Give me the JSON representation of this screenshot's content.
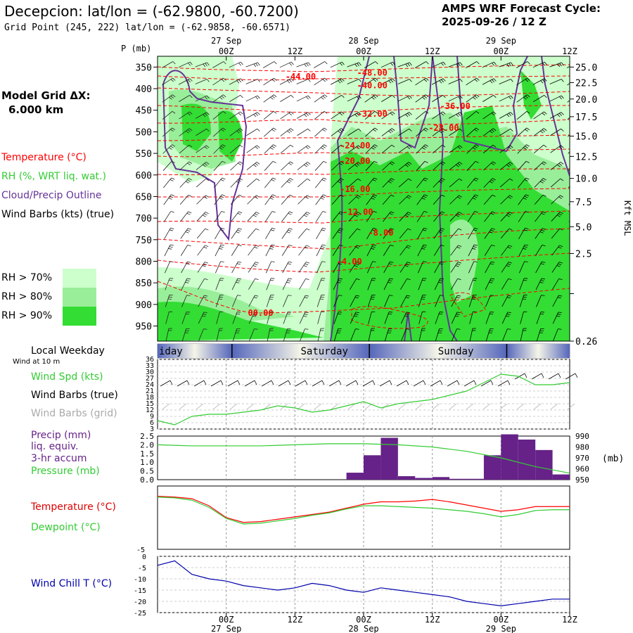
{
  "header": {
    "title": "Decepcion:  lat/lon = (-62.9800, -60.7200)",
    "grid_point": "Grid Point (245, 222) lat/lon = (-62.9858, -60.6571)",
    "cycle_title": "AMPS WRF Forecast Cycle:",
    "cycle_value": "2025-09-26 / 12  Z"
  },
  "legend": {
    "model_grid": "Model Grid ΔX:",
    "model_grid_value": "6.000 km",
    "temperature": "Temperature (°C)",
    "rh": "RH (%, WRT liq. wat.)",
    "cloud": "Cloud/Precip Outline",
    "wind": "Wind Barbs (kts) (true)",
    "rh70": "RH > 70%",
    "rh80": "RH > 80%",
    "rh90": "RH > 90%",
    "weekday_title": "Local Weekday",
    "wind_at": "Wind at 10 m",
    "wspd": "Wind Spd (kts)",
    "wbarbs_true": "Wind Barbs (true)",
    "wbarbs_grid": "Wind Barbs (grid)",
    "precip1": "Precip (mm)",
    "precip2": "liq. equiv.",
    "precip3": "3-hr accum",
    "pressure": "Pressure (mb)",
    "temp2": "Temperature (°C)",
    "dewpoint": "Dewpoint (°C)",
    "windchill": "Wind Chill T (°C)"
  },
  "colors": {
    "temp": "#ff0000",
    "rh": "#33dd33",
    "rh70": "#ccffcc",
    "rh80": "#99ee99",
    "rh90": "#33dd33",
    "cloud": "#663399",
    "precip": "#662288",
    "windchill": "#0000aa",
    "grid_wind": "#aaaaaa"
  },
  "chart_data": [
    {
      "type": "heatmap",
      "name": "time-height cross section",
      "p_label": "P (mb)",
      "p_ticks": [
        "350",
        "400",
        "450",
        "500",
        "550",
        "600",
        "650",
        "700",
        "750",
        "800",
        "850",
        "900",
        "950"
      ],
      "p_range": [
        325,
        985
      ],
      "height_ticks": [
        {
          "p": 350,
          "label": "25.0"
        },
        {
          "p": 386,
          "label": "22.5"
        },
        {
          "p": 424,
          "label": "20.0"
        },
        {
          "p": 465,
          "label": "17.5"
        },
        {
          "p": 510,
          "label": "15.0"
        },
        {
          "p": 557,
          "label": "12.5"
        },
        {
          "p": 608,
          "label": "10.0"
        },
        {
          "p": 662,
          "label": "7.5"
        },
        {
          "p": 720,
          "label": "5.0"
        },
        {
          "p": 782,
          "label": "2.5"
        },
        {
          "p": 875,
          "label": "0.26"
        }
      ],
      "height_axis_label": "Kft MSL",
      "time_ticks": [
        {
          "h": 12,
          "label": "00Z",
          "date": "27 Sep"
        },
        {
          "h": 24,
          "label": "12Z",
          "date": ""
        },
        {
          "h": 36,
          "label": "00Z",
          "date": "28 Sep"
        },
        {
          "h": 48,
          "label": "12Z",
          "date": ""
        },
        {
          "h": 60,
          "label": "00Z",
          "date": "29 Sep"
        },
        {
          "h": 72,
          "label": "12Z",
          "date": ""
        }
      ],
      "time_range": [
        0,
        72
      ],
      "temp_contours": [
        {
          "label": "-48.00",
          "h": 37.5,
          "p": 363
        },
        {
          "label": "-44.00",
          "h": 25,
          "p": 372
        },
        {
          "label": "-40.00",
          "h": 37.5,
          "p": 393
        },
        {
          "label": "-36.00",
          "h": 52,
          "p": 441
        },
        {
          "label": "-32.00",
          "h": 37.5,
          "p": 459
        },
        {
          "label": "-28.00",
          "h": 50,
          "p": 491
        },
        {
          "label": "-24.00",
          "h": 34.5,
          "p": 532
        },
        {
          "label": "-20.00",
          "h": 34.5,
          "p": 568
        },
        {
          "label": "-16.00",
          "h": 34.5,
          "p": 633
        },
        {
          "label": "-12.00",
          "h": 35,
          "p": 686
        },
        {
          "label": "-8.00",
          "h": 39,
          "p": 734
        },
        {
          "label": "-4.00",
          "h": 33.5,
          "p": 801
        },
        {
          "label": "00.00",
          "h": 18,
          "p": 920
        }
      ]
    },
    {
      "type": "line",
      "name": "surface wind",
      "weekdays": [
        {
          "label": "Friday",
          "shown": "iday"
        },
        {
          "label": "Saturday",
          "shown": "Saturday"
        },
        {
          "label": "Sunday",
          "shown": "Sunday"
        }
      ],
      "y_ticks": [
        "36",
        "33",
        "30",
        "27",
        "24",
        "21",
        "18",
        "15",
        "12",
        "9",
        "6",
        "3"
      ],
      "ylim": [
        3,
        36
      ],
      "wind_speed_x": [
        0,
        3,
        6,
        9,
        12,
        15,
        18,
        21,
        24,
        27,
        30,
        33,
        36,
        39,
        42,
        45,
        48,
        51,
        54,
        57,
        60,
        63,
        66,
        69,
        72
      ],
      "wind_speed": [
        7,
        5,
        9,
        10,
        10,
        11,
        12,
        14,
        13,
        11,
        12,
        14,
        16,
        13,
        15,
        16,
        17,
        19,
        21,
        25,
        29,
        28,
        24,
        24,
        25
      ]
    },
    {
      "type": "bar",
      "name": "precip and pressure",
      "precip_ticks": [
        "2.5",
        "2.0",
        "1.5",
        "1.0",
        "0.5",
        "0.0"
      ],
      "precip_ylim": [
        0,
        2.5
      ],
      "pressure_ticks": [
        "990",
        "980",
        "970",
        "960",
        "950"
      ],
      "pressure_ylim": [
        950,
        990
      ],
      "pressure_unit": "(mb)",
      "bins_start_h": [
        33,
        36,
        39,
        42,
        45,
        48,
        51,
        54,
        57,
        60,
        63,
        66,
        69
      ],
      "precip": [
        0.4,
        1.4,
        2.4,
        0.2,
        0.1,
        0.15,
        0.05,
        0.05,
        1.4,
        2.6,
        2.3,
        1.7,
        0.3
      ],
      "pressure_x": [
        0,
        6,
        12,
        18,
        24,
        30,
        36,
        42,
        48,
        54,
        60,
        66,
        72
      ],
      "pressure": [
        982,
        981,
        981,
        981,
        982,
        983,
        983,
        982,
        980,
        976,
        970,
        962,
        956
      ]
    },
    {
      "type": "line",
      "name": "temperature and dewpoint",
      "y_ticks": [
        "-5"
      ],
      "ylim": [
        -5,
        3
      ],
      "x": [
        0,
        3,
        6,
        9,
        12,
        15,
        18,
        21,
        24,
        27,
        30,
        33,
        36,
        39,
        42,
        45,
        48,
        51,
        54,
        57,
        60,
        63,
        66,
        69,
        72
      ],
      "temperature": [
        1.7,
        1.6,
        1.4,
        0.5,
        -1.0,
        -1.6,
        -1.5,
        -1.2,
        -0.9,
        -0.6,
        -0.3,
        0.2,
        0.7,
        1.0,
        1.0,
        1.1,
        1.3,
        1.0,
        0.6,
        0.2,
        -0.2,
        0.0,
        0.4,
        0.4,
        0.4
      ],
      "dewpoint": [
        1.6,
        1.5,
        1.2,
        0.3,
        -1.1,
        -1.8,
        -1.7,
        -1.4,
        -1.1,
        -0.7,
        -0.4,
        0.1,
        0.5,
        0.5,
        0.4,
        0.3,
        0.2,
        0.0,
        -0.2,
        -0.5,
        -0.9,
        -0.6,
        -0.1,
        0.0,
        0.0
      ]
    },
    {
      "type": "line",
      "name": "wind chill",
      "y_ticks": [
        "0",
        "-5",
        "-10",
        "-15",
        "-20",
        "-25"
      ],
      "ylim": [
        -25,
        0
      ],
      "x": [
        0,
        3,
        6,
        9,
        12,
        15,
        18,
        21,
        24,
        27,
        30,
        33,
        36,
        39,
        42,
        45,
        48,
        51,
        54,
        57,
        60,
        63,
        66,
        69,
        72
      ],
      "windchill": [
        -4,
        -2,
        -8,
        -10,
        -11,
        -13,
        -14,
        -15,
        -14,
        -12,
        -13,
        -15,
        -16,
        -14,
        -15,
        -16,
        -17,
        -18,
        -20,
        -21,
        -22,
        -21,
        -20,
        -19,
        -19
      ],
      "time_ticks_bottom": [
        "00Z",
        "12Z",
        "00Z",
        "12Z",
        "00Z",
        "12Z"
      ],
      "dates_bottom": [
        "27 Sep",
        "28 Sep",
        "29 Sep"
      ]
    }
  ]
}
